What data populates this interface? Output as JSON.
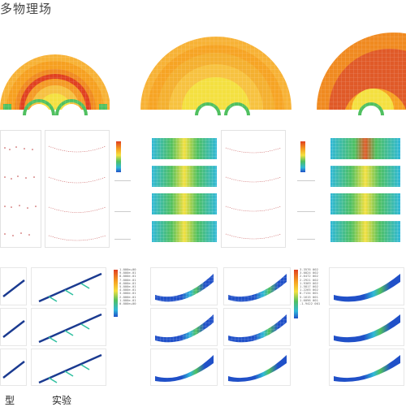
{
  "header": {
    "title": "多物理场"
  },
  "footer": {
    "left_label": "型",
    "right_label": "实验"
  },
  "colorbar": {
    "labels": [
      "0.000e+00",
      "1.000e-01",
      "2.000e-01",
      "3.000e-01",
      "4.000e-01",
      "5.000e-01",
      "6.000e-01",
      "7.000e-01",
      "8.000e-01",
      "9.000e-01",
      "1.000e+00"
    ]
  },
  "legend": {
    "labels": [
      "3.3576 002",
      "3.0024 002",
      "2.6472 002",
      "2.2921 002",
      "1.9369 002",
      "1.5817 002",
      "1.2265 002",
      "8.7134 001",
      "5.1615 001",
      "1.6096 001",
      "-1.9422 001"
    ]
  },
  "colors": {
    "hot": "#e04020",
    "warm": "#f6a020",
    "yellow": "#f4e040",
    "green": "#50c060",
    "cyan": "#30b8d8",
    "blue": "#2050c8"
  }
}
